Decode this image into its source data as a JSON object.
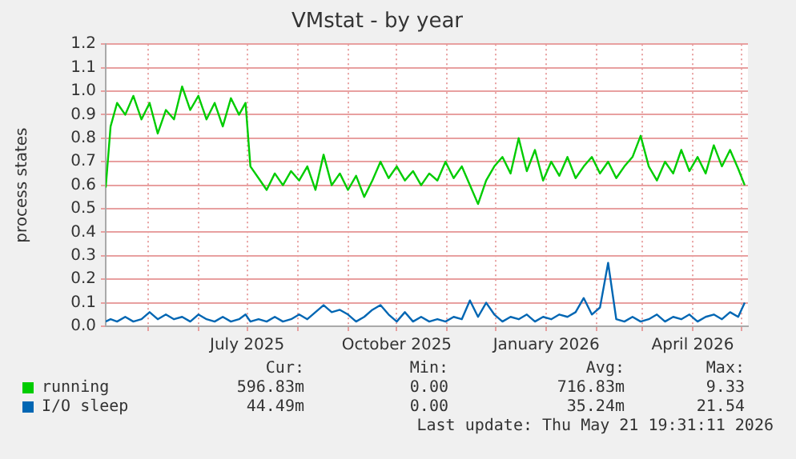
{
  "chart_data": {
    "type": "line",
    "title": "VMstat - by year",
    "ylabel": "process states",
    "legend": "bottom",
    "grid": true,
    "marker": "none",
    "xlim": [
      "2025-04-05",
      "2026-05-05"
    ],
    "xticks": [
      {
        "value": "2025-05-01",
        "label": null
      },
      {
        "value": "2025-06-01",
        "label": null
      },
      {
        "value": "2025-07-01",
        "label": "July 2025"
      },
      {
        "value": "2025-08-01",
        "label": null
      },
      {
        "value": "2025-09-01",
        "label": null
      },
      {
        "value": "2025-10-01",
        "label": "October 2025"
      },
      {
        "value": "2025-11-01",
        "label": null
      },
      {
        "value": "2025-12-01",
        "label": null
      },
      {
        "value": "2026-01-01",
        "label": "January 2026"
      },
      {
        "value": "2026-02-01",
        "label": null
      },
      {
        "value": "2026-03-01",
        "label": null
      },
      {
        "value": "2026-04-01",
        "label": "April 2026"
      },
      {
        "value": "2026-05-01",
        "label": null
      }
    ],
    "ylim": [
      0,
      1.2
    ],
    "yticks": [
      {
        "value": 0,
        "label": "0.0"
      },
      0.1,
      0.2,
      0.3,
      0.4,
      0.5,
      0.6,
      0.7,
      0.8,
      0.9,
      {
        "value": 1,
        "label": "1.0"
      },
      1.1,
      1.2
    ],
    "x": [
      "2025-04-05",
      "2025-04-08",
      "2025-04-12",
      "2025-04-17",
      "2025-04-22",
      "2025-04-27",
      "2025-05-02",
      "2025-05-07",
      "2025-05-12",
      "2025-05-17",
      "2025-05-22",
      "2025-05-27",
      "2025-06-01",
      "2025-06-06",
      "2025-06-11",
      "2025-06-16",
      "2025-06-21",
      "2025-06-26",
      "2025-06-30",
      "2025-07-03",
      "2025-07-08",
      "2025-07-13",
      "2025-07-18",
      "2025-07-23",
      "2025-07-28",
      "2025-08-02",
      "2025-08-07",
      "2025-08-12",
      "2025-08-17",
      "2025-08-22",
      "2025-08-27",
      "2025-09-01",
      "2025-09-06",
      "2025-09-11",
      "2025-09-16",
      "2025-09-21",
      "2025-09-26",
      "2025-10-01",
      "2025-10-06",
      "2025-10-11",
      "2025-10-16",
      "2025-10-21",
      "2025-10-26",
      "2025-10-31",
      "2025-11-05",
      "2025-11-10",
      "2025-11-15",
      "2025-11-20",
      "2025-11-25",
      "2025-11-30",
      "2025-12-05",
      "2025-12-10",
      "2025-12-15",
      "2025-12-20",
      "2025-12-25",
      "2025-12-30",
      "2026-01-04",
      "2026-01-09",
      "2026-01-14",
      "2026-01-19",
      "2026-01-24",
      "2026-01-29",
      "2026-02-03",
      "2026-02-08",
      "2026-02-13",
      "2026-02-18",
      "2026-02-23",
      "2026-02-28",
      "2026-03-05",
      "2026-03-10",
      "2026-03-15",
      "2026-03-20",
      "2026-03-25",
      "2026-03-30",
      "2026-04-04",
      "2026-04-09",
      "2026-04-14",
      "2026-04-19",
      "2026-04-24",
      "2026-04-29",
      "2026-05-03"
    ],
    "series": [
      {
        "name": "running",
        "color": "#00cc00",
        "values": [
          0.59,
          0.85,
          0.95,
          0.9,
          0.98,
          0.88,
          0.95,
          0.82,
          0.92,
          0.88,
          1.02,
          0.92,
          0.98,
          0.88,
          0.95,
          0.85,
          0.97,
          0.9,
          0.95,
          0.68,
          0.63,
          0.58,
          0.65,
          0.6,
          0.66,
          0.62,
          0.68,
          0.58,
          0.73,
          0.6,
          0.65,
          0.58,
          0.64,
          0.55,
          0.62,
          0.7,
          0.63,
          0.68,
          0.62,
          0.66,
          0.6,
          0.65,
          0.62,
          0.7,
          0.63,
          0.68,
          0.6,
          0.52,
          0.62,
          0.68,
          0.72,
          0.65,
          0.8,
          0.66,
          0.75,
          0.62,
          0.7,
          0.64,
          0.72,
          0.63,
          0.68,
          0.72,
          0.65,
          0.7,
          0.63,
          0.68,
          0.72,
          0.81,
          0.68,
          0.62,
          0.7,
          0.65,
          0.75,
          0.66,
          0.72,
          0.65,
          0.77,
          0.68,
          0.75,
          0.67,
          0.6
        ]
      },
      {
        "name": "I/O sleep",
        "color": "#0066b3",
        "values": [
          0.02,
          0.03,
          0.02,
          0.04,
          0.02,
          0.03,
          0.06,
          0.03,
          0.05,
          0.03,
          0.04,
          0.02,
          0.05,
          0.03,
          0.02,
          0.04,
          0.02,
          0.03,
          0.05,
          0.02,
          0.03,
          0.02,
          0.04,
          0.02,
          0.03,
          0.05,
          0.03,
          0.06,
          0.09,
          0.06,
          0.07,
          0.05,
          0.02,
          0.04,
          0.07,
          0.09,
          0.05,
          0.02,
          0.06,
          0.02,
          0.04,
          0.02,
          0.03,
          0.02,
          0.04,
          0.03,
          0.11,
          0.04,
          0.1,
          0.05,
          0.02,
          0.04,
          0.03,
          0.05,
          0.02,
          0.04,
          0.03,
          0.05,
          0.04,
          0.06,
          0.12,
          0.05,
          0.08,
          0.27,
          0.03,
          0.02,
          0.04,
          0.02,
          0.03,
          0.05,
          0.02,
          0.04,
          0.03,
          0.05,
          0.02,
          0.04,
          0.05,
          0.03,
          0.06,
          0.04,
          0.1
        ]
      }
    ],
    "annotations": [
      "Cur:",
      "Min:",
      "Avg:",
      "Max:",
      "596.83m",
      "0.00",
      "716.83m",
      "9.33",
      "44.49m",
      "0.00",
      "35.24m",
      "21.54",
      "Last update: Thu May 21 19:31:11 2026"
    ]
  }
}
